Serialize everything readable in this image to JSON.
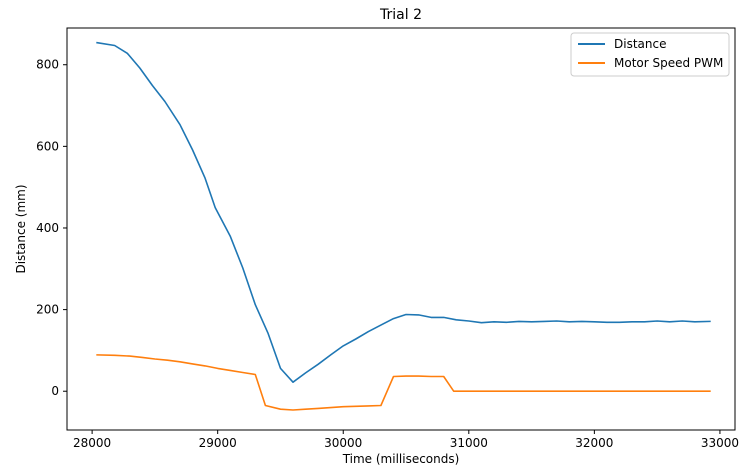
{
  "chart_data": {
    "type": "line",
    "title": "Trial 2",
    "xlabel": "Time (milliseconds)",
    "ylabel": "Distance (mm)",
    "xlim": [
      27800,
      33120
    ],
    "ylim": [
      -95,
      890
    ],
    "xticks": [
      28000,
      29000,
      30000,
      31000,
      32000,
      33000
    ],
    "yticks": [
      0,
      200,
      400,
      600,
      800
    ],
    "grid": false,
    "legend_position": "top-right",
    "colors": {
      "distance": "#1f77b4",
      "motor": "#ff7f0e"
    },
    "series": [
      {
        "name": "Distance",
        "color": "#1f77b4",
        "x": [
          28040,
          28180,
          28280,
          28380,
          28480,
          28580,
          28700,
          28800,
          28900,
          28980,
          29100,
          29200,
          29300,
          29400,
          29500,
          29600,
          29700,
          29800,
          29900,
          30000,
          30100,
          30200,
          30300,
          30400,
          30500,
          30600,
          30700,
          30800,
          30900,
          31000,
          31100,
          31200,
          31300,
          31400,
          31500,
          31600,
          31700,
          31800,
          31900,
          32000,
          32100,
          32200,
          32300,
          32400,
          32500,
          32600,
          32700,
          32800,
          32920
        ],
        "y": [
          854,
          847,
          828,
          792,
          749,
          710,
          653,
          591,
          522,
          450,
          380,
          302,
          212,
          143,
          56,
          22,
          45,
          66,
          89,
          111,
          128,
          146,
          162,
          178,
          188,
          187,
          181,
          181,
          175,
          172,
          168,
          170,
          169,
          171,
          170,
          171,
          172,
          170,
          171,
          170,
          169,
          169,
          170,
          170,
          172,
          170,
          172,
          170,
          171
        ]
      },
      {
        "name": "Motor Speed PWM",
        "color": "#ff7f0e",
        "x": [
          28040,
          28180,
          28300,
          28400,
          28500,
          28600,
          28700,
          28800,
          28900,
          29000,
          29100,
          29200,
          29300,
          29380,
          29500,
          29600,
          29700,
          29800,
          29900,
          30000,
          30100,
          30200,
          30300,
          30400,
          30500,
          30600,
          30700,
          30800,
          30880,
          31000,
          31100,
          31200,
          31300,
          31400,
          31500,
          31600,
          31700,
          31800,
          31900,
          32000,
          32100,
          32200,
          32300,
          32400,
          32500,
          32600,
          32700,
          32800,
          32920
        ],
        "y": [
          89,
          88,
          86,
          83,
          79,
          76,
          72,
          67,
          62,
          56,
          51,
          46,
          41,
          -35,
          -44,
          -46,
          -44,
          -42,
          -40,
          -38,
          -37,
          -36,
          -35,
          36,
          37,
          37,
          36,
          36,
          0,
          0,
          0,
          0,
          0,
          0,
          0,
          0,
          0,
          0,
          0,
          0,
          0,
          0,
          0,
          0,
          0,
          0,
          0,
          0,
          0
        ]
      }
    ]
  }
}
